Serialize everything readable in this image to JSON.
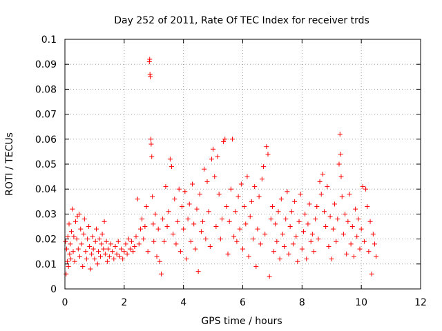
{
  "chart_data": {
    "type": "scatter",
    "title": "Day 252 of 2011, Rate Of TEC Index for receiver trds",
    "xlabel": "GPS time / hours",
    "ylabel": "ROTI / TECUs",
    "xlim": [
      0,
      12
    ],
    "ylim": [
      0,
      0.1
    ],
    "x_ticks": [
      0,
      2,
      4,
      6,
      8,
      10,
      12
    ],
    "x_tick_labels": [
      "0",
      "2",
      "4",
      "6",
      "8",
      "10",
      "12"
    ],
    "y_ticks": [
      0,
      0.01,
      0.02,
      0.03,
      0.04,
      0.05,
      0.06,
      0.07,
      0.08,
      0.09,
      0.1
    ],
    "y_tick_labels": [
      "0",
      "0.01",
      "0.02",
      "0.03",
      "0.04",
      "0.05",
      "0.06",
      "0.07",
      "0.08",
      "0.09",
      "0.1"
    ],
    "grid": true,
    "marker": "plus",
    "color": "#ff0000",
    "series": [
      {
        "points": [
          [
            0.02,
            0.019
          ],
          [
            0.04,
            0.006
          ],
          [
            0.06,
            0.016
          ],
          [
            0.08,
            0.011
          ],
          [
            0.1,
            0.021
          ],
          [
            0.12,
            0.009
          ],
          [
            0.14,
            0.026
          ],
          [
            0.16,
            0.014
          ],
          [
            0.18,
            0.018
          ],
          [
            0.2,
            0.012
          ],
          [
            0.22,
            0.023
          ],
          [
            0.25,
            0.032
          ],
          [
            0.28,
            0.015
          ],
          [
            0.3,
            0.021
          ],
          [
            0.33,
            0.011
          ],
          [
            0.36,
            0.027
          ],
          [
            0.4,
            0.02
          ],
          [
            0.42,
            0.029
          ],
          [
            0.45,
            0.016
          ],
          [
            0.48,
            0.03
          ],
          [
            0.5,
            0.013
          ],
          [
            0.53,
            0.024
          ],
          [
            0.56,
            0.018
          ],
          [
            0.6,
            0.009
          ],
          [
            0.63,
            0.022
          ],
          [
            0.66,
            0.028
          ],
          [
            0.7,
            0.015
          ],
          [
            0.73,
            0.012
          ],
          [
            0.76,
            0.02
          ],
          [
            0.8,
            0.025
          ],
          [
            0.83,
            0.017
          ],
          [
            0.86,
            0.008
          ],
          [
            0.9,
            0.014
          ],
          [
            0.93,
            0.021
          ],
          [
            0.96,
            0.016
          ],
          [
            1.0,
            0.012
          ],
          [
            1.03,
            0.019
          ],
          [
            1.06,
            0.024
          ],
          [
            1.1,
            0.01
          ],
          [
            1.13,
            0.015
          ],
          [
            1.16,
            0.02
          ],
          [
            1.2,
            0.013
          ],
          [
            1.23,
            0.018
          ],
          [
            1.26,
            0.022
          ],
          [
            1.3,
            0.016
          ],
          [
            1.33,
            0.027
          ],
          [
            1.36,
            0.014
          ],
          [
            1.4,
            0.019
          ],
          [
            1.43,
            0.011
          ],
          [
            1.46,
            0.016
          ],
          [
            1.5,
            0.013
          ],
          [
            1.55,
            0.018
          ],
          [
            1.6,
            0.015
          ],
          [
            1.65,
            0.012
          ],
          [
            1.7,
            0.017
          ],
          [
            1.75,
            0.014
          ],
          [
            1.8,
            0.019
          ],
          [
            1.85,
            0.013
          ],
          [
            1.9,
            0.016
          ],
          [
            1.95,
            0.012
          ],
          [
            2.0,
            0.015
          ],
          [
            2.05,
            0.018
          ],
          [
            2.1,
            0.014
          ],
          [
            2.15,
            0.02
          ],
          [
            2.2,
            0.016
          ],
          [
            2.25,
            0.019
          ],
          [
            2.3,
            0.015
          ],
          [
            2.35,
            0.017
          ],
          [
            2.4,
            0.021
          ],
          [
            2.45,
            0.036
          ],
          [
            2.5,
            0.018
          ],
          [
            2.55,
            0.024
          ],
          [
            2.6,
            0.028
          ],
          [
            2.65,
            0.02
          ],
          [
            2.7,
            0.025
          ],
          [
            2.75,
            0.033
          ],
          [
            2.8,
            0.015
          ],
          [
            2.85,
            0.091
          ],
          [
            2.86,
            0.092
          ],
          [
            2.87,
            0.086
          ],
          [
            2.88,
            0.085
          ],
          [
            2.9,
            0.06
          ],
          [
            2.91,
            0.058
          ],
          [
            2.93,
            0.053
          ],
          [
            2.95,
            0.037
          ],
          [
            2.98,
            0.026
          ],
          [
            3.0,
            0.019
          ],
          [
            3.05,
            0.03
          ],
          [
            3.1,
            0.013
          ],
          [
            3.15,
            0.024
          ],
          [
            3.2,
            0.011
          ],
          [
            3.25,
            0.006
          ],
          [
            3.3,
            0.028
          ],
          [
            3.35,
            0.019
          ],
          [
            3.4,
            0.041
          ],
          [
            3.45,
            0.025
          ],
          [
            3.5,
            0.031
          ],
          [
            3.55,
            0.052
          ],
          [
            3.6,
            0.049
          ],
          [
            3.65,
            0.022
          ],
          [
            3.7,
            0.036
          ],
          [
            3.75,
            0.018
          ],
          [
            3.8,
            0.027
          ],
          [
            3.85,
            0.04
          ],
          [
            3.9,
            0.015
          ],
          [
            3.95,
            0.033
          ],
          [
            4.0,
            0.024
          ],
          [
            4.05,
            0.039
          ],
          [
            4.1,
            0.012
          ],
          [
            4.15,
            0.028
          ],
          [
            4.2,
            0.034
          ],
          [
            4.25,
            0.019
          ],
          [
            4.3,
            0.042
          ],
          [
            4.35,
            0.026
          ],
          [
            4.4,
            0.016
          ],
          [
            4.45,
            0.032
          ],
          [
            4.5,
            0.007
          ],
          [
            4.55,
            0.038
          ],
          [
            4.6,
            0.023
          ],
          [
            4.65,
            0.027
          ],
          [
            4.7,
            0.048
          ],
          [
            4.75,
            0.02
          ],
          [
            4.8,
            0.043
          ],
          [
            4.85,
            0.031
          ],
          [
            4.9,
            0.017
          ],
          [
            4.95,
            0.052
          ],
          [
            5.0,
            0.056
          ],
          [
            5.05,
            0.045
          ],
          [
            5.1,
            0.025
          ],
          [
            5.15,
            0.053
          ],
          [
            5.2,
            0.038
          ],
          [
            5.25,
            0.02
          ],
          [
            5.3,
            0.028
          ],
          [
            5.35,
            0.059
          ],
          [
            5.4,
            0.06
          ],
          [
            5.45,
            0.033
          ],
          [
            5.5,
            0.014
          ],
          [
            5.55,
            0.027
          ],
          [
            5.6,
            0.04
          ],
          [
            5.65,
            0.06
          ],
          [
            5.7,
            0.021
          ],
          [
            5.75,
            0.031
          ],
          [
            5.8,
            0.019
          ],
          [
            5.85,
            0.037
          ],
          [
            5.9,
            0.024
          ],
          [
            5.95,
            0.042
          ],
          [
            6.0,
            0.016
          ],
          [
            6.05,
            0.033
          ],
          [
            6.1,
            0.026
          ],
          [
            6.15,
            0.045
          ],
          [
            6.2,
            0.013
          ],
          [
            6.25,
            0.029
          ],
          [
            6.3,
            0.035
          ],
          [
            6.35,
            0.02
          ],
          [
            6.4,
            0.041
          ],
          [
            6.45,
            0.009
          ],
          [
            6.5,
            0.024
          ],
          [
            6.55,
            0.037
          ],
          [
            6.6,
            0.018
          ],
          [
            6.65,
            0.044
          ],
          [
            6.7,
            0.049
          ],
          [
            6.75,
            0.022
          ],
          [
            6.8,
            0.057
          ],
          [
            6.85,
            0.054
          ],
          [
            6.9,
            0.005
          ],
          [
            6.95,
            0.028
          ],
          [
            7.0,
            0.033
          ],
          [
            7.05,
            0.015
          ],
          [
            7.1,
            0.026
          ],
          [
            7.15,
            0.019
          ],
          [
            7.2,
            0.031
          ],
          [
            7.25,
            0.012
          ],
          [
            7.3,
            0.036
          ],
          [
            7.35,
            0.022
          ],
          [
            7.4,
            0.017
          ],
          [
            7.45,
            0.028
          ],
          [
            7.5,
            0.039
          ],
          [
            7.55,
            0.014
          ],
          [
            7.6,
            0.025
          ],
          [
            7.65,
            0.031
          ],
          [
            7.7,
            0.018
          ],
          [
            7.75,
            0.035
          ],
          [
            7.8,
            0.021
          ],
          [
            7.85,
            0.011
          ],
          [
            7.9,
            0.027
          ],
          [
            7.95,
            0.038
          ],
          [
            8.0,
            0.016
          ],
          [
            8.05,
            0.023
          ],
          [
            8.1,
            0.03
          ],
          [
            8.15,
            0.012
          ],
          [
            8.2,
            0.026
          ],
          [
            8.25,
            0.034
          ],
          [
            8.3,
            0.019
          ],
          [
            8.35,
            0.022
          ],
          [
            8.4,
            0.015
          ],
          [
            8.45,
            0.028
          ],
          [
            8.5,
            0.033
          ],
          [
            8.55,
            0.02
          ],
          [
            8.6,
            0.043
          ],
          [
            8.65,
            0.038
          ],
          [
            8.7,
            0.046
          ],
          [
            8.75,
            0.031
          ],
          [
            8.8,
            0.025
          ],
          [
            8.85,
            0.041
          ],
          [
            8.9,
            0.017
          ],
          [
            8.95,
            0.029
          ],
          [
            9.0,
            0.012
          ],
          [
            9.05,
            0.024
          ],
          [
            9.1,
            0.034
          ],
          [
            9.15,
            0.019
          ],
          [
            9.2,
            0.028
          ],
          [
            9.25,
            0.05
          ],
          [
            9.28,
            0.062
          ],
          [
            9.3,
            0.054
          ],
          [
            9.32,
            0.045
          ],
          [
            9.35,
            0.037
          ],
          [
            9.4,
            0.022
          ],
          [
            9.45,
            0.03
          ],
          [
            9.5,
            0.014
          ],
          [
            9.55,
            0.027
          ],
          [
            9.6,
            0.038
          ],
          [
            9.65,
            0.018
          ],
          [
            9.7,
            0.025
          ],
          [
            9.75,
            0.013
          ],
          [
            9.8,
            0.032
          ],
          [
            9.85,
            0.021
          ],
          [
            9.9,
            0.028
          ],
          [
            9.95,
            0.016
          ],
          [
            10.0,
            0.024
          ],
          [
            10.05,
            0.041
          ],
          [
            10.1,
            0.019
          ],
          [
            10.15,
            0.04
          ],
          [
            10.2,
            0.033
          ],
          [
            10.25,
            0.015
          ],
          [
            10.3,
            0.027
          ],
          [
            10.35,
            0.006
          ],
          [
            10.4,
            0.022
          ],
          [
            10.45,
            0.018
          ],
          [
            10.5,
            0.013
          ]
        ]
      }
    ]
  }
}
